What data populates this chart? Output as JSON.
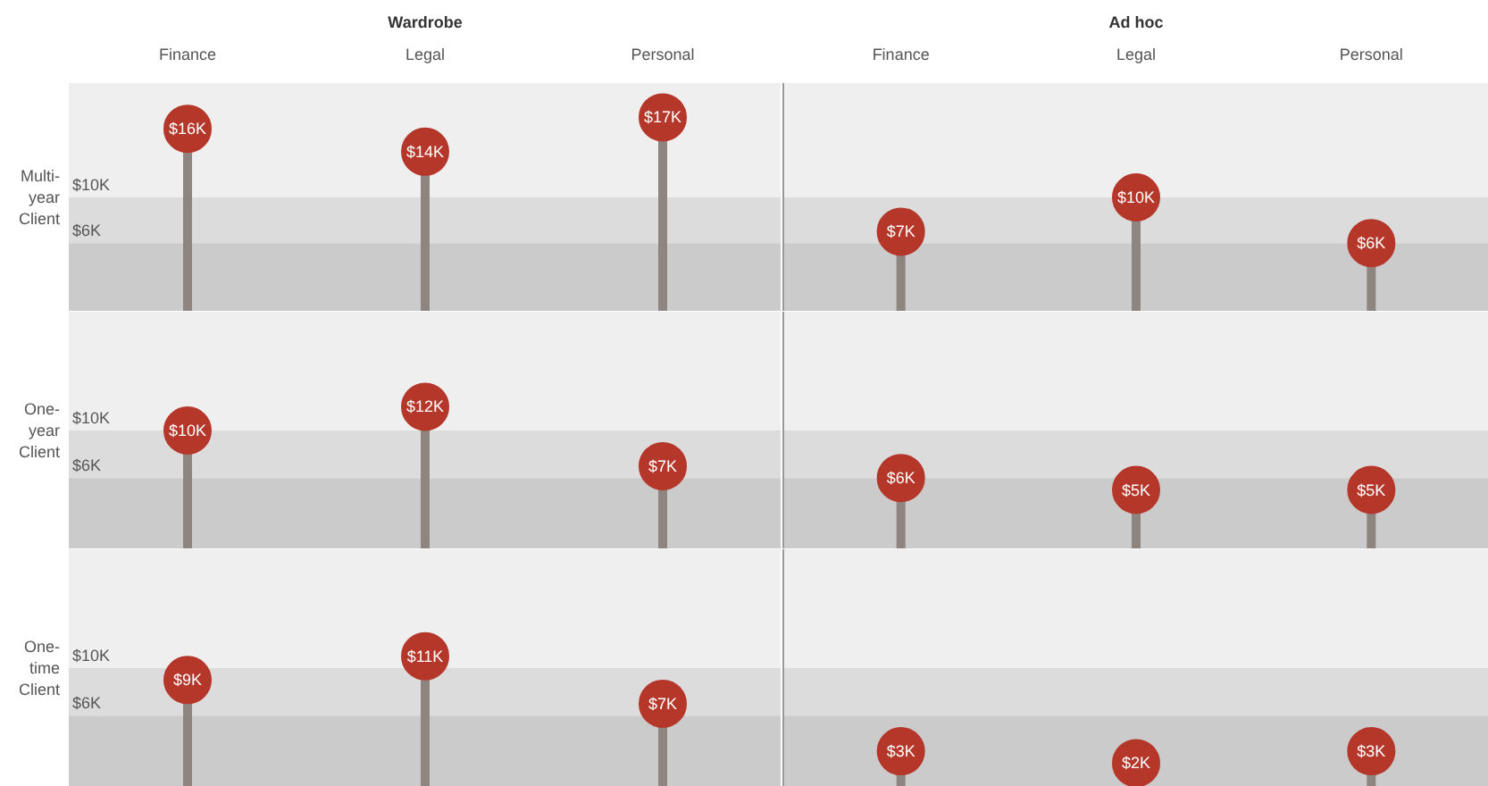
{
  "chart_data": [
    {
      "type": "lollipop",
      "title": "Wardrobe",
      "ylabel": "Multi-year Client",
      "categories": [
        "Finance",
        "Legal",
        "Personal"
      ],
      "values": [
        16,
        14,
        17
      ],
      "value_labels": [
        "$16K",
        "$14K",
        "$17K"
      ],
      "color": "#b5372a",
      "ylim": [
        0,
        20
      ],
      "tick_labels": "x",
      "bands": [
        {
          "axis": "y",
          "from": 0,
          "to": 6,
          "label": "$6K",
          "color": "#cbcbcb"
        },
        {
          "axis": "y",
          "from": 6,
          "to": 10,
          "label": "$10K",
          "color": "#dcdcdc"
        }
      ]
    },
    {
      "type": "lollipop",
      "title": "Ad hoc",
      "categories": [
        "Finance",
        "Legal",
        "Personal"
      ],
      "values": [
        7,
        10,
        6
      ],
      "value_labels": [
        "$7K",
        "$10K",
        "$6K"
      ],
      "color": "#b5372a",
      "ylim": [
        0,
        20
      ],
      "tick_labels": "x",
      "bands": [
        {
          "axis": "y",
          "from": 0,
          "to": 6,
          "label": null,
          "color": "#cbcbcb"
        },
        {
          "axis": "y",
          "from": 6,
          "to": 10,
          "label": null,
          "color": "#dcdcdc"
        }
      ]
    },
    {
      "type": "lollipop",
      "ylabel": "One-year Client",
      "categories": [
        null,
        null,
        null
      ],
      "values": [
        10,
        12,
        7
      ],
      "value_labels": [
        "$10K",
        "$12K",
        "$7K"
      ],
      "color": "#b5372a",
      "ylim": [
        0,
        20
      ],
      "tick_labels": false,
      "bands": [
        {
          "axis": "y",
          "from": 0,
          "to": 6,
          "label": "$6K",
          "color": "#cbcbcb"
        },
        {
          "axis": "y",
          "from": 6,
          "to": 10,
          "label": "$10K",
          "color": "#dcdcdc"
        }
      ]
    },
    {
      "type": "lollipop",
      "categories": [
        null,
        null,
        null
      ],
      "values": [
        6,
        5,
        5
      ],
      "value_labels": [
        "$6K",
        "$5K",
        "$5K"
      ],
      "color": "#b5372a",
      "ylim": [
        0,
        20
      ],
      "tick_labels": false,
      "bands": [
        {
          "axis": "y",
          "from": 0,
          "to": 6,
          "label": null,
          "color": "#cbcbcb"
        },
        {
          "axis": "y",
          "from": 6,
          "to": 10,
          "label": null,
          "color": "#dcdcdc"
        }
      ]
    },
    {
      "type": "lollipop",
      "ylabel": "One-time Client",
      "categories": [
        null,
        null,
        null
      ],
      "values": [
        9,
        11,
        7
      ],
      "value_labels": [
        "$9K",
        "$11K",
        "$7K"
      ],
      "color": "#b5372a",
      "ylim": [
        0,
        20
      ],
      "tick_labels": false,
      "bands": [
        {
          "axis": "y",
          "from": 0,
          "to": 6,
          "label": "$6K",
          "color": "#cbcbcb"
        },
        {
          "axis": "y",
          "from": 6,
          "to": 10,
          "label": "$10K",
          "color": "#dcdcdc"
        }
      ]
    },
    {
      "type": "lollipop",
      "categories": [
        null,
        null,
        null
      ],
      "values": [
        3,
        2,
        3
      ],
      "value_labels": [
        "$3K",
        "$2K",
        "$3K"
      ],
      "color": "#b5372a",
      "ylim": [
        0,
        20
      ],
      "tick_labels": false,
      "bands": [
        {
          "axis": "y",
          "from": 0,
          "to": 6,
          "label": null,
          "color": "#cbcbcb"
        },
        {
          "axis": "y",
          "from": 6,
          "to": 10,
          "label": null,
          "color": "#dcdcdc"
        }
      ]
    }
  ]
}
